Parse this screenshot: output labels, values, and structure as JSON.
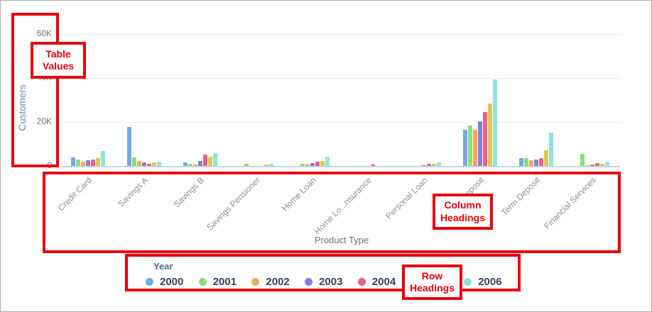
{
  "chart_data": {
    "type": "bar",
    "title": "",
    "xlabel": "Product Type",
    "ylabel": "Customers",
    "ylim": [
      0,
      64000
    ],
    "grid": true,
    "legend_title": "Year",
    "legend_position": "bottom",
    "yticks": [
      {
        "label": "0",
        "value": 0
      },
      {
        "label": "20K",
        "value": 20000
      },
      {
        "label": "40K",
        "value": 40000
      },
      {
        "label": "60K",
        "value": 60000
      }
    ],
    "categories": [
      "Credit Card",
      "Savings A",
      "Savings B",
      "Savings Pensioner",
      "Home Loan",
      "Home Lo...nsurance",
      "Personal Loan",
      "Demand Deposit",
      "Term Deposit",
      "Financial Services"
    ],
    "series": [
      {
        "name": "2000",
        "color": "#74AADF",
        "values": [
          4000,
          17700,
          1700,
          0,
          0,
          0,
          0,
          16500,
          3400,
          0
        ]
      },
      {
        "name": "2001",
        "color": "#8CDD7B",
        "values": [
          2900,
          3800,
          1100,
          1000,
          1100,
          0,
          0,
          18400,
          3700,
          5500
        ]
      },
      {
        "name": "2002",
        "color": "#F6A75C",
        "values": [
          1900,
          2200,
          600,
          0,
          500,
          0,
          0,
          16500,
          2700,
          400
        ]
      },
      {
        "name": "2003",
        "color": "#8381D9",
        "values": [
          2500,
          1700,
          2200,
          0,
          1400,
          0,
          400,
          20300,
          3000,
          800
        ]
      },
      {
        "name": "2004",
        "color": "#EC6089",
        "values": [
          3000,
          1100,
          5200,
          0,
          1900,
          800,
          900,
          24400,
          3700,
          1200
        ]
      },
      {
        "name": "2005",
        "color": "#D9C94F",
        "values": [
          3600,
          1700,
          4300,
          500,
          2200,
          0,
          1100,
          28300,
          7200,
          900
        ]
      },
      {
        "name": "2006",
        "color": "#90E2DC",
        "values": [
          6800,
          1900,
          5900,
          1000,
          4300,
          0,
          1600,
          39500,
          15000,
          2000
        ]
      }
    ]
  },
  "annotations": {
    "accent_color": "#e8000d",
    "table_values": {
      "line1": "Table",
      "line2": "Values"
    },
    "column_headings": {
      "line1": "Column",
      "line2": "Headings"
    },
    "row_headings": {
      "line1": "Row",
      "line2": "Headings"
    }
  }
}
